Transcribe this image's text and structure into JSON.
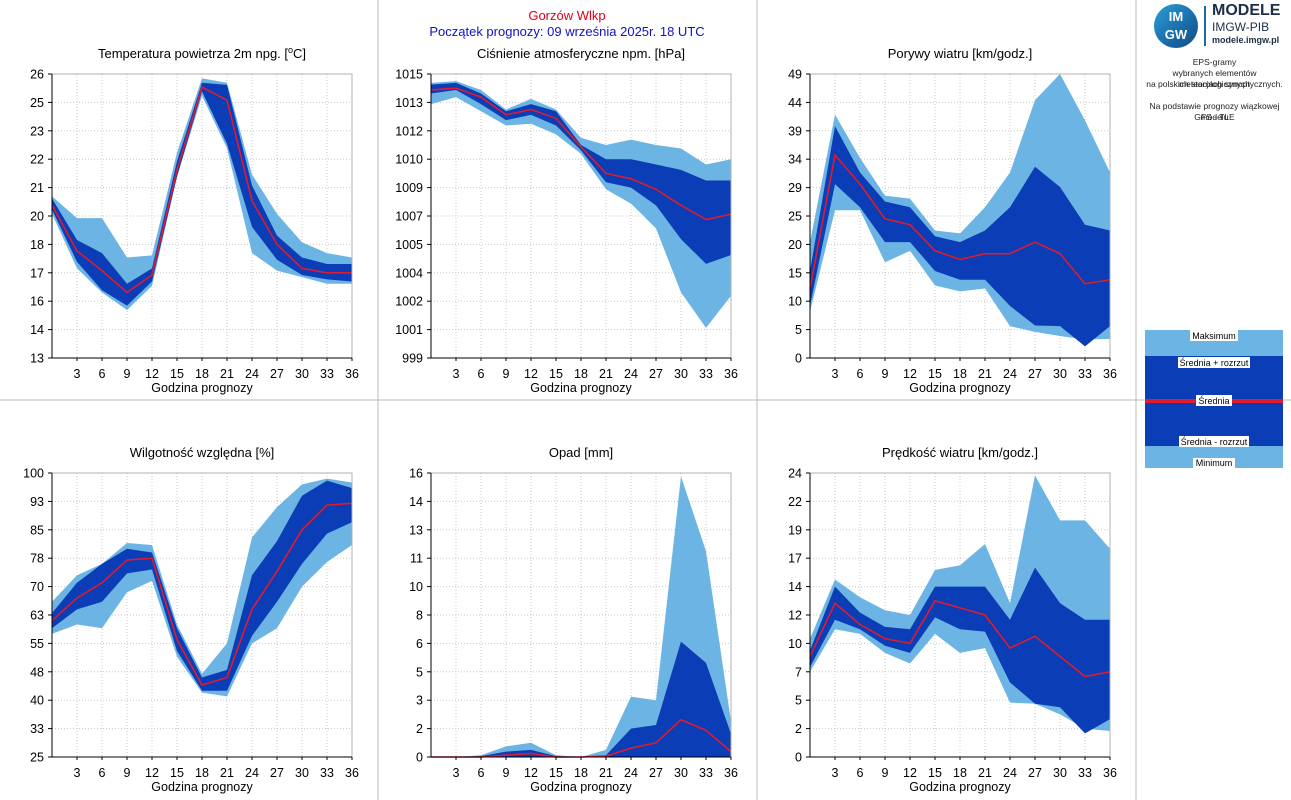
{
  "header": {
    "station": "Gorzów Wlkp",
    "start": "Początek prognozy: 09 września 2025r. 18 UTC"
  },
  "side": {
    "logo_line1": "MODELE",
    "logo_line2": "IMGW-PIB",
    "logo_line3": "modele.imgw.pl",
    "logo_mark_top": "IM",
    "logo_mark_bottom": "GW",
    "note_lines": [
      "EPS-gramy",
      "wybranych elementów meteorologicznych",
      "na polskich stacjach  synoptycznych.",
      "",
      "Na podstawie prognozy wiązkowej modelu",
      "GFS - TLE"
    ],
    "legend": {
      "max": "Maksimum",
      "upper": "Średnia + rozrzut",
      "mean": "Średnia",
      "lower": "Średnia - rozrzut",
      "min": "Minimum"
    }
  },
  "colors": {
    "outer": "#6cb4e4",
    "inner": "#0a3db6",
    "mean": "#e01b2d"
  },
  "chart_data": [
    {
      "type": "area",
      "title": "Temperatura powietrza 2m npg. [°C]",
      "title_main": "Temperatura powietrza 2m npg. [",
      "title_sup": "o",
      "title_end": "C]",
      "xlabel": "Godzina prognozy",
      "x": [
        0,
        3,
        6,
        9,
        12,
        15,
        18,
        21,
        24,
        27,
        30,
        33,
        36
      ],
      "xticks": [
        "3",
        "6",
        "9",
        "12",
        "15",
        "18",
        "21",
        "24",
        "27",
        "30",
        "33",
        "36"
      ],
      "ylim": [
        13,
        26
      ],
      "yticks": [
        "13",
        "14",
        "16",
        "17",
        "18",
        "20",
        "21",
        "22",
        "23",
        "25",
        "26"
      ],
      "ytick_values": [
        13,
        14.3,
        15.6,
        16.9,
        18.2,
        19.5,
        20.8,
        22.1,
        23.4,
        24.7,
        26
      ],
      "series": [
        {
          "role": "max",
          "values": [
            20.4,
            19.4,
            19.4,
            17.6,
            17.7,
            22.4,
            25.8,
            25.6,
            21.4,
            19.6,
            18.3,
            17.8,
            17.6
          ]
        },
        {
          "role": "upper",
          "values": [
            20.3,
            18.4,
            17.8,
            16.4,
            17.1,
            22.0,
            25.6,
            25.5,
            20.9,
            18.6,
            17.6,
            17.3,
            17.3
          ]
        },
        {
          "role": "mean",
          "values": [
            20.0,
            17.9,
            17.0,
            16.0,
            16.8,
            21.6,
            25.4,
            24.8,
            20.2,
            18.2,
            17.1,
            16.9,
            16.9
          ]
        },
        {
          "role": "lower",
          "values": [
            19.8,
            17.4,
            16.1,
            15.4,
            16.5,
            21.3,
            25.2,
            22.8,
            19.0,
            17.5,
            16.8,
            16.6,
            16.5
          ]
        },
        {
          "role": "min",
          "values": [
            19.6,
            17.1,
            16.0,
            15.2,
            16.3,
            21.3,
            25.0,
            22.6,
            17.8,
            17.0,
            16.7,
            16.4,
            16.4
          ]
        }
      ]
    },
    {
      "type": "area",
      "title": "Ciśnienie atmosferyczne npm. [hPa]",
      "xlabel": "Godzina prognozy",
      "x": [
        0,
        3,
        6,
        9,
        12,
        15,
        18,
        21,
        24,
        27,
        30,
        33,
        36
      ],
      "xticks": [
        "3",
        "6",
        "9",
        "12",
        "15",
        "18",
        "21",
        "24",
        "27",
        "30",
        "33",
        "36"
      ],
      "ylim": [
        999,
        1015
      ],
      "yticks": [
        "999",
        "1001",
        "1002",
        "1004",
        "1005",
        "1007",
        "1009",
        "1010",
        "1012",
        "1013",
        "1015"
      ],
      "ytick_values": [
        999,
        1000.6,
        1002.2,
        1003.8,
        1005.4,
        1007,
        1008.6,
        1010.2,
        1011.8,
        1013.4,
        1015
      ],
      "series": [
        {
          "role": "max",
          "values": [
            1014.5,
            1014.6,
            1014.1,
            1013.0,
            1013.6,
            1013.0,
            1011.4,
            1011.0,
            1011.3,
            1011.0,
            1010.8,
            1009.9,
            1010.2
          ]
        },
        {
          "role": "upper",
          "values": [
            1014.4,
            1014.5,
            1013.9,
            1012.9,
            1013.3,
            1012.9,
            1011.0,
            1010.2,
            1010.2,
            1009.9,
            1009.6,
            1009.0,
            1009.0
          ]
        },
        {
          "role": "mean",
          "values": [
            1014.1,
            1014.2,
            1013.7,
            1012.7,
            1013.0,
            1012.5,
            1010.9,
            1009.4,
            1009.1,
            1008.5,
            1007.6,
            1006.8,
            1007.1
          ]
        },
        {
          "role": "lower",
          "values": [
            1013.9,
            1014.1,
            1013.3,
            1012.4,
            1012.7,
            1012.1,
            1010.7,
            1008.9,
            1008.6,
            1007.6,
            1005.7,
            1004.3,
            1004.8
          ]
        },
        {
          "role": "min",
          "values": [
            1013.3,
            1013.7,
            1012.9,
            1012.1,
            1012.2,
            1011.6,
            1010.5,
            1008.5,
            1007.7,
            1006.3,
            1002.7,
            1000.7,
            1002.5
          ]
        }
      ]
    },
    {
      "type": "area",
      "title": "Porywy wiatru [km/godz.]",
      "xlabel": "Godzina prognozy",
      "x": [
        0,
        3,
        6,
        9,
        12,
        15,
        18,
        21,
        24,
        27,
        30,
        33,
        36
      ],
      "xticks": [
        "3",
        "6",
        "9",
        "12",
        "15",
        "18",
        "21",
        "24",
        "27",
        "30",
        "33",
        "36"
      ],
      "ylim": [
        0,
        49
      ],
      "yticks": [
        "0",
        "5",
        "10",
        "15",
        "20",
        "25",
        "29",
        "34",
        "39",
        "44",
        "49"
      ],
      "ytick_values": [
        0,
        4.9,
        9.8,
        14.7,
        19.6,
        24.5,
        29.4,
        34.3,
        39.2,
        44.1,
        49
      ],
      "series": [
        {
          "role": "max",
          "values": [
            20.0,
            42.0,
            34.5,
            28.0,
            27.5,
            22.0,
            21.5,
            26.0,
            32.0,
            44.5,
            49.0,
            41.0,
            32.0
          ]
        },
        {
          "role": "upper",
          "values": [
            15.0,
            40.0,
            32.0,
            27.0,
            26.0,
            21.0,
            20.0,
            22.0,
            26.0,
            33.0,
            29.5,
            23.0,
            22.0
          ]
        },
        {
          "role": "mean",
          "values": [
            12.0,
            35.0,
            30.0,
            24.0,
            23.0,
            18.5,
            17.0,
            18.0,
            18.0,
            20.0,
            18.0,
            12.8,
            13.5
          ]
        },
        {
          "role": "lower",
          "values": [
            9.0,
            30.0,
            26.0,
            20.0,
            20.0,
            15.0,
            13.5,
            13.5,
            9.0,
            5.6,
            5.5,
            2.0,
            5.5
          ]
        },
        {
          "role": "min",
          "values": [
            8.0,
            25.5,
            25.5,
            16.5,
            18.5,
            12.5,
            11.5,
            12.0,
            5.5,
            4.5,
            3.8,
            3.2,
            3.3
          ]
        }
      ]
    },
    {
      "type": "area",
      "title": "Wilgotność względna [%]",
      "xlabel": "Godzina prognozy",
      "x": [
        0,
        3,
        6,
        9,
        12,
        15,
        18,
        21,
        24,
        27,
        30,
        33,
        36
      ],
      "xticks": [
        "3",
        "6",
        "9",
        "12",
        "15",
        "18",
        "21",
        "24",
        "27",
        "30",
        "33",
        "36"
      ],
      "ylim": [
        25,
        100
      ],
      "yticks": [
        "25",
        "33",
        "40",
        "48",
        "55",
        "63",
        "70",
        "78",
        "85",
        "93",
        "100"
      ],
      "ytick_values": [
        25,
        32.5,
        40,
        47.5,
        55,
        62.5,
        70,
        77.5,
        85,
        92.5,
        100
      ],
      "series": [
        {
          "role": "max",
          "values": [
            66.0,
            73.0,
            76.0,
            81.5,
            81.0,
            60.0,
            47.0,
            55.0,
            83.0,
            91.0,
            97.0,
            98.5,
            97.5
          ]
        },
        {
          "role": "upper",
          "values": [
            63.0,
            71.0,
            76.0,
            80.0,
            79.0,
            59.0,
            46.0,
            48.0,
            73.0,
            82.0,
            94.0,
            98.0,
            96.0
          ]
        },
        {
          "role": "mean",
          "values": [
            61.0,
            67.0,
            71.0,
            77.0,
            77.5,
            56.0,
            44.0,
            46.0,
            64.0,
            74.0,
            85.0,
            91.5,
            92.0
          ]
        },
        {
          "role": "lower",
          "values": [
            59.0,
            64.0,
            66.0,
            73.5,
            74.5,
            53.0,
            42.5,
            42.5,
            57.0,
            66.0,
            76.0,
            84.0,
            87.0
          ]
        },
        {
          "role": "min",
          "values": [
            57.5,
            60.0,
            59.0,
            68.5,
            71.5,
            51.5,
            42.0,
            41.0,
            55.0,
            59.0,
            70.0,
            76.5,
            81.0
          ]
        }
      ]
    },
    {
      "type": "area",
      "title": "Opad [mm]",
      "xlabel": "Godzina prognozy",
      "x": [
        0,
        3,
        6,
        9,
        12,
        15,
        18,
        21,
        24,
        27,
        30,
        33,
        36
      ],
      "xticks": [
        "3",
        "6",
        "9",
        "12",
        "15",
        "18",
        "21",
        "24",
        "27",
        "30",
        "33",
        "36"
      ],
      "ylim": [
        0,
        16
      ],
      "yticks": [
        "0",
        "2",
        "3",
        "5",
        "6",
        "8",
        "10",
        "11",
        "13",
        "14",
        "16"
      ],
      "ytick_values": [
        0,
        1.6,
        3.2,
        4.8,
        6.4,
        8,
        9.6,
        11.2,
        12.8,
        14.4,
        16
      ],
      "series": [
        {
          "role": "max",
          "values": [
            0,
            0,
            0.1,
            0.6,
            0.8,
            0.1,
            0,
            0.4,
            3.4,
            3.2,
            15.8,
            11.6,
            2.0
          ]
        },
        {
          "role": "upper",
          "values": [
            0,
            0,
            0.05,
            0.3,
            0.4,
            0.05,
            0,
            0.1,
            1.6,
            1.8,
            6.5,
            5.3,
            1.3
          ]
        },
        {
          "role": "mean",
          "values": [
            0,
            0,
            0,
            0.1,
            0.2,
            0,
            0,
            0.05,
            0.5,
            0.8,
            2.1,
            1.5,
            0.3
          ]
        },
        {
          "role": "lower",
          "values": [
            0,
            0,
            0,
            0,
            0,
            0,
            0,
            0,
            0,
            0,
            0,
            0,
            0
          ]
        },
        {
          "role": "min",
          "values": [
            0,
            0,
            0,
            0,
            0,
            0,
            0,
            0,
            0,
            0,
            0,
            0,
            0
          ]
        }
      ]
    },
    {
      "type": "area",
      "title": "Prędkość wiatru [km/godz.]",
      "xlabel": "Godzina prognozy",
      "x": [
        0,
        3,
        6,
        9,
        12,
        15,
        18,
        21,
        24,
        27,
        30,
        33,
        36
      ],
      "xticks": [
        "3",
        "6",
        "9",
        "12",
        "15",
        "18",
        "21",
        "24",
        "27",
        "30",
        "33",
        "36"
      ],
      "ylim": [
        0,
        24
      ],
      "yticks": [
        "0",
        "2",
        "5",
        "7",
        "10",
        "12",
        "14",
        "17",
        "19",
        "22",
        "24"
      ],
      "ytick_values": [
        0,
        2.4,
        4.8,
        7.2,
        9.6,
        12,
        14.4,
        16.8,
        19.2,
        21.6,
        24
      ],
      "series": [
        {
          "role": "max",
          "values": [
            10.0,
            15.0,
            13.5,
            12.4,
            12.0,
            15.8,
            16.2,
            18.0,
            13.0,
            23.8,
            20.0,
            20.0,
            17.6
          ]
        },
        {
          "role": "upper",
          "values": [
            9.0,
            14.4,
            12.2,
            11.0,
            10.8,
            14.4,
            14.4,
            14.4,
            11.6,
            16.0,
            13.0,
            11.6,
            11.6
          ]
        },
        {
          "role": "mean",
          "values": [
            8.5,
            13.0,
            11.2,
            10.0,
            9.6,
            13.2,
            12.6,
            12.0,
            9.2,
            10.2,
            8.5,
            6.8,
            7.2
          ]
        },
        {
          "role": "lower",
          "values": [
            7.6,
            11.6,
            10.8,
            9.4,
            8.8,
            11.8,
            10.8,
            10.6,
            6.3,
            4.5,
            4.2,
            2.0,
            3.2
          ]
        },
        {
          "role": "min",
          "values": [
            7.2,
            10.8,
            10.4,
            8.8,
            7.9,
            10.4,
            8.8,
            9.2,
            4.6,
            4.5,
            3.6,
            2.4,
            2.2
          ]
        }
      ]
    }
  ]
}
